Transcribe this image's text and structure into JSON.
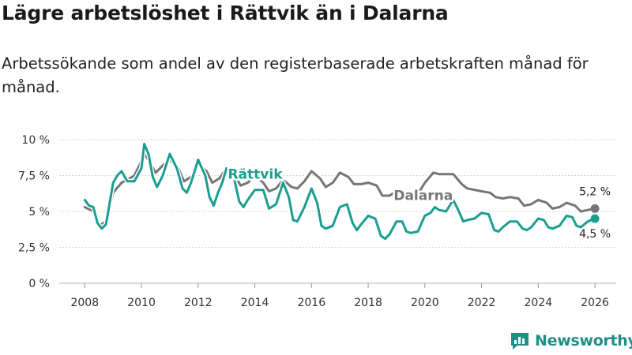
{
  "title": "Lägre arbetslöshet i Rättvik än i Dalarna",
  "subtitle": "Arbetssökande som andel av den registerbaserade arbetskraften månad för månad.",
  "brand": {
    "name": "Newsworthy",
    "icon": "newsworthy-logo-icon"
  },
  "colors": {
    "rattvik": "#1a9e8f",
    "dalarna": "#767676",
    "grid": "#d4d4d4",
    "brand": "#1f8f86"
  },
  "chart_data": {
    "type": "line",
    "title": "Lägre arbetslöshet i Rättvik än i Dalarna",
    "xlabel": "",
    "ylabel": "",
    "xlim": [
      2007.1,
      2026.75
    ],
    "ylim": [
      0,
      10
    ],
    "x_ticks": [
      2008,
      2010,
      2012,
      2014,
      2016,
      2018,
      2020,
      2022,
      2024,
      2026
    ],
    "x_tick_labels": [
      "2008",
      "2010",
      "2012",
      "2014",
      "2016",
      "2018",
      "2020",
      "2022",
      "2024",
      "2026"
    ],
    "y_ticks": [
      0,
      2.5,
      5,
      7.5,
      10
    ],
    "y_tick_labels": [
      "0 %",
      "2,5 %",
      "5 %",
      "7,5 %",
      "10 %"
    ],
    "grid": true,
    "series": [
      {
        "name": "Dalarna",
        "label": "Dalarna",
        "color": "#767676",
        "end_label": "5,2 %",
        "points": [
          [
            2008.0,
            5.3
          ],
          [
            2008.3,
            5.0
          ],
          [
            2008.5,
            4.0
          ],
          [
            2008.75,
            4.3
          ],
          [
            2009.0,
            6.3
          ],
          [
            2009.3,
            7.0
          ],
          [
            2009.5,
            7.2
          ],
          [
            2009.75,
            7.5
          ],
          [
            2010.0,
            8.5
          ],
          [
            2010.15,
            8.9
          ],
          [
            2010.3,
            8.4
          ],
          [
            2010.5,
            7.7
          ],
          [
            2010.75,
            8.2
          ],
          [
            2011.0,
            8.6
          ],
          [
            2011.3,
            8.0
          ],
          [
            2011.5,
            7.1
          ],
          [
            2011.75,
            7.4
          ],
          [
            2012.0,
            8.3
          ],
          [
            2012.3,
            7.8
          ],
          [
            2012.5,
            7.0
          ],
          [
            2012.75,
            7.3
          ],
          [
            2013.0,
            8.0
          ],
          [
            2013.3,
            7.5
          ],
          [
            2013.5,
            6.8
          ],
          [
            2013.75,
            7.0
          ],
          [
            2014.0,
            7.5
          ],
          [
            2014.3,
            7.0
          ],
          [
            2014.5,
            6.4
          ],
          [
            2014.75,
            6.6
          ],
          [
            2015.0,
            7.2
          ],
          [
            2015.3,
            6.7
          ],
          [
            2015.5,
            6.6
          ],
          [
            2015.75,
            7.1
          ],
          [
            2016.0,
            7.8
          ],
          [
            2016.3,
            7.3
          ],
          [
            2016.5,
            6.7
          ],
          [
            2016.75,
            7.0
          ],
          [
            2017.0,
            7.7
          ],
          [
            2017.3,
            7.4
          ],
          [
            2017.5,
            6.9
          ],
          [
            2017.75,
            6.9
          ],
          [
            2018.0,
            7.0
          ],
          [
            2018.3,
            6.8
          ],
          [
            2018.5,
            6.1
          ],
          [
            2018.75,
            6.1
          ],
          [
            2019.0,
            6.4
          ],
          [
            2019.3,
            6.1
          ],
          [
            2019.5,
            5.9
          ],
          [
            2019.75,
            6.2
          ],
          [
            2020.0,
            7.0
          ],
          [
            2020.3,
            7.7
          ],
          [
            2020.5,
            7.6
          ],
          [
            2020.75,
            7.6
          ],
          [
            2021.0,
            7.6
          ],
          [
            2021.3,
            6.9
          ],
          [
            2021.5,
            6.6
          ],
          [
            2021.75,
            6.5
          ],
          [
            2022.0,
            6.4
          ],
          [
            2022.3,
            6.3
          ],
          [
            2022.5,
            6.0
          ],
          [
            2022.75,
            5.9
          ],
          [
            2023.0,
            6.0
          ],
          [
            2023.3,
            5.9
          ],
          [
            2023.5,
            5.4
          ],
          [
            2023.75,
            5.5
          ],
          [
            2024.0,
            5.8
          ],
          [
            2024.3,
            5.6
          ],
          [
            2024.5,
            5.2
          ],
          [
            2024.75,
            5.3
          ],
          [
            2025.0,
            5.6
          ],
          [
            2025.3,
            5.4
          ],
          [
            2025.5,
            5.0
          ],
          [
            2025.75,
            5.1
          ],
          [
            2026.0,
            5.2
          ]
        ]
      },
      {
        "name": "Rättvik",
        "label": "Rättvik",
        "color": "#1a9e8f",
        "end_label": "4,5 %",
        "points": [
          [
            2008.0,
            5.8
          ],
          [
            2008.15,
            5.4
          ],
          [
            2008.3,
            5.3
          ],
          [
            2008.45,
            4.2
          ],
          [
            2008.6,
            3.8
          ],
          [
            2008.75,
            4.1
          ],
          [
            2009.0,
            7.0
          ],
          [
            2009.15,
            7.5
          ],
          [
            2009.3,
            7.8
          ],
          [
            2009.5,
            7.1
          ],
          [
            2009.75,
            7.1
          ],
          [
            2010.0,
            8.0
          ],
          [
            2010.1,
            9.7
          ],
          [
            2010.25,
            9.0
          ],
          [
            2010.4,
            7.4
          ],
          [
            2010.55,
            6.7
          ],
          [
            2010.75,
            7.5
          ],
          [
            2011.0,
            9.0
          ],
          [
            2011.25,
            8.0
          ],
          [
            2011.45,
            6.6
          ],
          [
            2011.6,
            6.3
          ],
          [
            2011.75,
            7.0
          ],
          [
            2012.0,
            8.6
          ],
          [
            2012.25,
            7.5
          ],
          [
            2012.4,
            6.0
          ],
          [
            2012.55,
            5.4
          ],
          [
            2012.7,
            6.3
          ],
          [
            2012.85,
            7.0
          ],
          [
            2013.0,
            8.0
          ],
          [
            2013.25,
            7.5
          ],
          [
            2013.45,
            5.7
          ],
          [
            2013.6,
            5.3
          ],
          [
            2013.75,
            5.8
          ],
          [
            2014.0,
            6.5
          ],
          [
            2014.3,
            6.5
          ],
          [
            2014.5,
            5.2
          ],
          [
            2014.75,
            5.5
          ],
          [
            2015.0,
            7.0
          ],
          [
            2015.2,
            6.0
          ],
          [
            2015.35,
            4.4
          ],
          [
            2015.5,
            4.3
          ],
          [
            2015.75,
            5.3
          ],
          [
            2016.0,
            6.6
          ],
          [
            2016.2,
            5.6
          ],
          [
            2016.35,
            4.0
          ],
          [
            2016.5,
            3.8
          ],
          [
            2016.75,
            4.0
          ],
          [
            2017.0,
            5.3
          ],
          [
            2017.25,
            5.5
          ],
          [
            2017.45,
            4.2
          ],
          [
            2017.6,
            3.7
          ],
          [
            2017.75,
            4.1
          ],
          [
            2018.0,
            4.7
          ],
          [
            2018.25,
            4.5
          ],
          [
            2018.45,
            3.3
          ],
          [
            2018.6,
            3.1
          ],
          [
            2018.75,
            3.4
          ],
          [
            2019.0,
            4.3
          ],
          [
            2019.2,
            4.3
          ],
          [
            2019.35,
            3.6
          ],
          [
            2019.5,
            3.5
          ],
          [
            2019.75,
            3.6
          ],
          [
            2020.0,
            4.7
          ],
          [
            2020.2,
            4.9
          ],
          [
            2020.35,
            5.3
          ],
          [
            2020.5,
            5.1
          ],
          [
            2020.75,
            5.0
          ],
          [
            2021.0,
            5.8
          ],
          [
            2021.2,
            5.0
          ],
          [
            2021.35,
            4.3
          ],
          [
            2021.5,
            4.4
          ],
          [
            2021.75,
            4.5
          ],
          [
            2022.0,
            4.9
          ],
          [
            2022.25,
            4.8
          ],
          [
            2022.45,
            3.7
          ],
          [
            2022.6,
            3.6
          ],
          [
            2022.75,
            3.9
          ],
          [
            2023.0,
            4.3
          ],
          [
            2023.25,
            4.3
          ],
          [
            2023.45,
            3.8
          ],
          [
            2023.6,
            3.7
          ],
          [
            2023.75,
            3.9
          ],
          [
            2024.0,
            4.5
          ],
          [
            2024.2,
            4.4
          ],
          [
            2024.35,
            3.9
          ],
          [
            2024.5,
            3.8
          ],
          [
            2024.75,
            4.0
          ],
          [
            2025.0,
            4.7
          ],
          [
            2025.2,
            4.6
          ],
          [
            2025.35,
            4.0
          ],
          [
            2025.5,
            3.9
          ],
          [
            2025.75,
            4.3
          ],
          [
            2026.0,
            4.5
          ]
        ]
      }
    ],
    "annotations": [
      {
        "text": "Rättvik",
        "series": "Rättvik"
      },
      {
        "text": "Dalarna",
        "series": "Dalarna"
      },
      {
        "text": "5,2 %",
        "series": "Dalarna"
      },
      {
        "text": "4,5 %",
        "series": "Rättvik"
      }
    ]
  }
}
